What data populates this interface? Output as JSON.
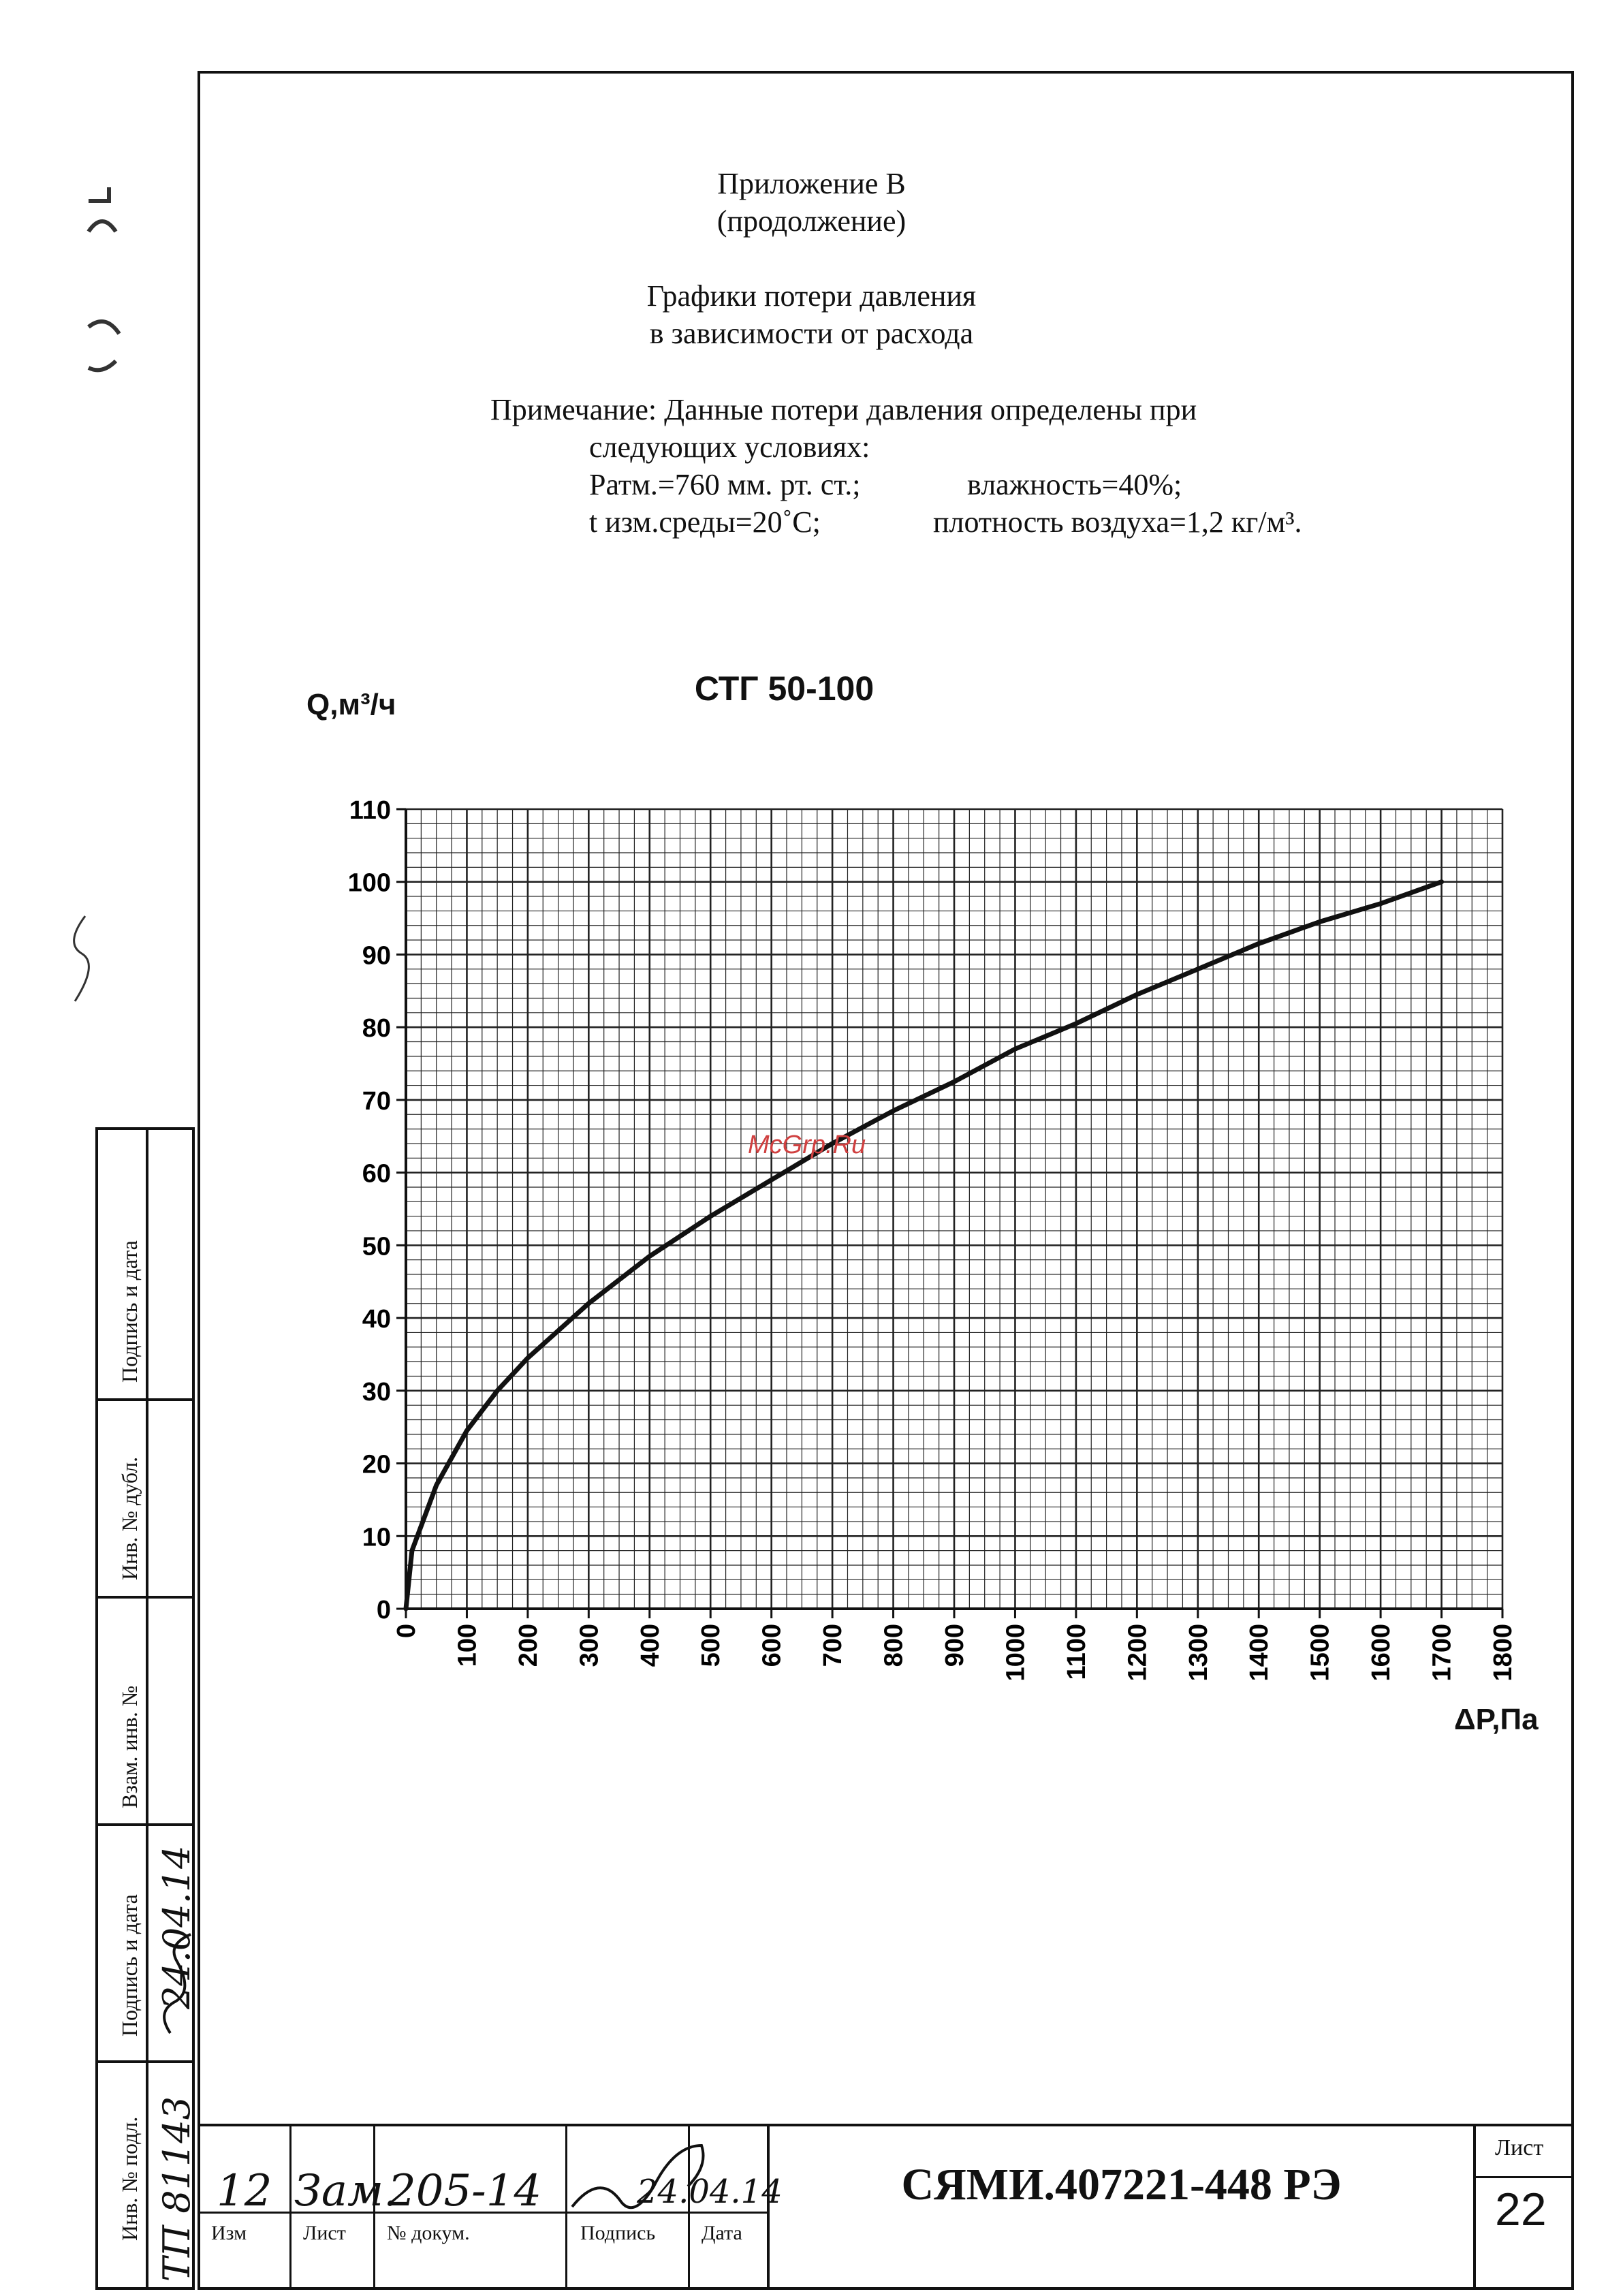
{
  "header": {
    "appendix": "Приложение В",
    "continuation": "(продолжение)",
    "title_line1": "Графики потери давления",
    "title_line2": "в зависимости от расхода"
  },
  "note": {
    "line1": "Примечание: Данные потери давления определены при",
    "line2": "следующих условиях:",
    "patm": "Ратм.=760 мм. рт. ст.;",
    "humidity": "влажность=40%;",
    "temp": "t изм.среды=20˚С;",
    "density": "плотность воздуха=1,2 кг/м³."
  },
  "watermark": "McGrp.Ru",
  "side_stamp": {
    "podpis_data_top": "Подпись и дата",
    "inv_dubl": "Инв. № дубл.",
    "vzam_inv": "Взам. инв. №",
    "podpis_data_bottom": "Подпись и дата",
    "inv_podl": "Инв. № подл.",
    "inv_podl_value": "ТП 81143",
    "date_value": "24.04.14"
  },
  "title_block": {
    "izm_label": "Изм",
    "list_label": "Лист",
    "dokum_label": "№ докум.",
    "podpis_label": "Подпись",
    "data_label": "Дата",
    "izm_value": "12",
    "list_value": "Зам.",
    "dokum_value": "205-14",
    "data_value": "24.04.14",
    "doc_code": "СЯМИ.407221-448 РЭ",
    "sheet_label": "Лист",
    "sheet_number": "22"
  },
  "chart_data": {
    "type": "line",
    "title": "СТГ 50-100",
    "ylabel": "Q,м³/ч",
    "xlabel": "ΔP,Па",
    "xlim": [
      0,
      1800
    ],
    "ylim": [
      0,
      110
    ],
    "x_ticks": [
      "0",
      "100",
      "200",
      "300",
      "400",
      "500",
      "600",
      "700",
      "800",
      "900",
      "1000",
      "1100",
      "1200",
      "1300",
      "1400",
      "1500",
      "1600",
      "1700",
      "1800"
    ],
    "y_ticks": [
      "0",
      "10",
      "20",
      "30",
      "40",
      "50",
      "60",
      "70",
      "80",
      "90",
      "100",
      "110"
    ],
    "grid": true,
    "x": [
      0,
      10,
      50,
      100,
      150,
      200,
      300,
      400,
      500,
      600,
      700,
      800,
      900,
      1000,
      1100,
      1200,
      1300,
      1400,
      1500,
      1600,
      1700
    ],
    "y": [
      0,
      8,
      17,
      24.5,
      30,
      34.5,
      42,
      48.5,
      54,
      59,
      64,
      68.5,
      72.5,
      77,
      80.5,
      84.5,
      88,
      91.5,
      94.5,
      97,
      100
    ]
  }
}
